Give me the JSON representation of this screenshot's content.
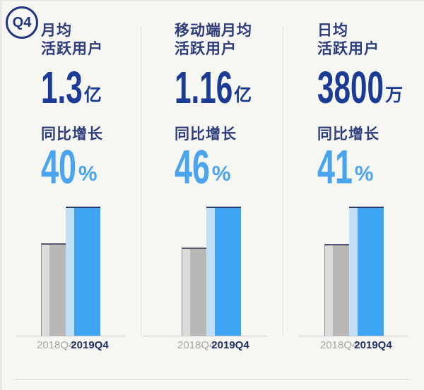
{
  "badge": {
    "label": "Q4"
  },
  "columns": [
    {
      "title_lines": [
        "月均",
        "活跃用户"
      ],
      "value": "1.3",
      "value_unit": "亿",
      "growth_label": "同比增长",
      "growth_value": "40",
      "growth_unit": "%"
    },
    {
      "title_lines": [
        "移动端月均",
        "活跃用户"
      ],
      "value": "1.16",
      "value_unit": "亿",
      "growth_label": "同比增长",
      "growth_value": "46",
      "growth_unit": "%"
    },
    {
      "title_lines": [
        "日均",
        "活跃用户"
      ],
      "value": "3800",
      "value_unit": "万",
      "growth_label": "同比增长",
      "growth_value": "41",
      "growth_unit": "%"
    }
  ],
  "chart_data": [
    {
      "type": "bar",
      "title": "月均活跃用户 1.3亿 同比增长40%",
      "categories": [
        "2018Q4",
        "2019Q4"
      ],
      "values": [
        100,
        140
      ],
      "value_basis": "index, 2018Q4 = 100",
      "latest_value": "1.3亿",
      "yoy_growth_pct": 40,
      "grid": false,
      "legend": false
    },
    {
      "type": "bar",
      "title": "移动端月均活跃用户 1.16亿 同比增长46%",
      "categories": [
        "2018Q4",
        "2019Q4"
      ],
      "values": [
        100,
        146
      ],
      "value_basis": "index, 2018Q4 = 100",
      "latest_value": "1.16亿",
      "yoy_growth_pct": 46,
      "grid": false,
      "legend": false
    },
    {
      "type": "bar",
      "title": "日均活跃用户 3800万 同比增长41%",
      "categories": [
        "2018Q4",
        "2019Q4"
      ],
      "values": [
        100,
        141
      ],
      "value_basis": "index, 2018Q4 = 100",
      "latest_value": "3800万",
      "yoy_growth_pct": 41,
      "grid": false,
      "legend": false
    }
  ],
  "colors": {
    "background": "#f6f6f3",
    "navy_title": "#2e3c7a",
    "navy_number": "#1c3b94",
    "growth_blue": "#4aa4ee",
    "bar_2019": "#3ea5f4",
    "bar_2019_highlight": "#c2dff7",
    "bar_2018": "#bab8b6",
    "bar_2018_highlight": "#dedcda",
    "axis_label_prev": "#a8a6a4",
    "axis_label_curr": "#242e63"
  }
}
